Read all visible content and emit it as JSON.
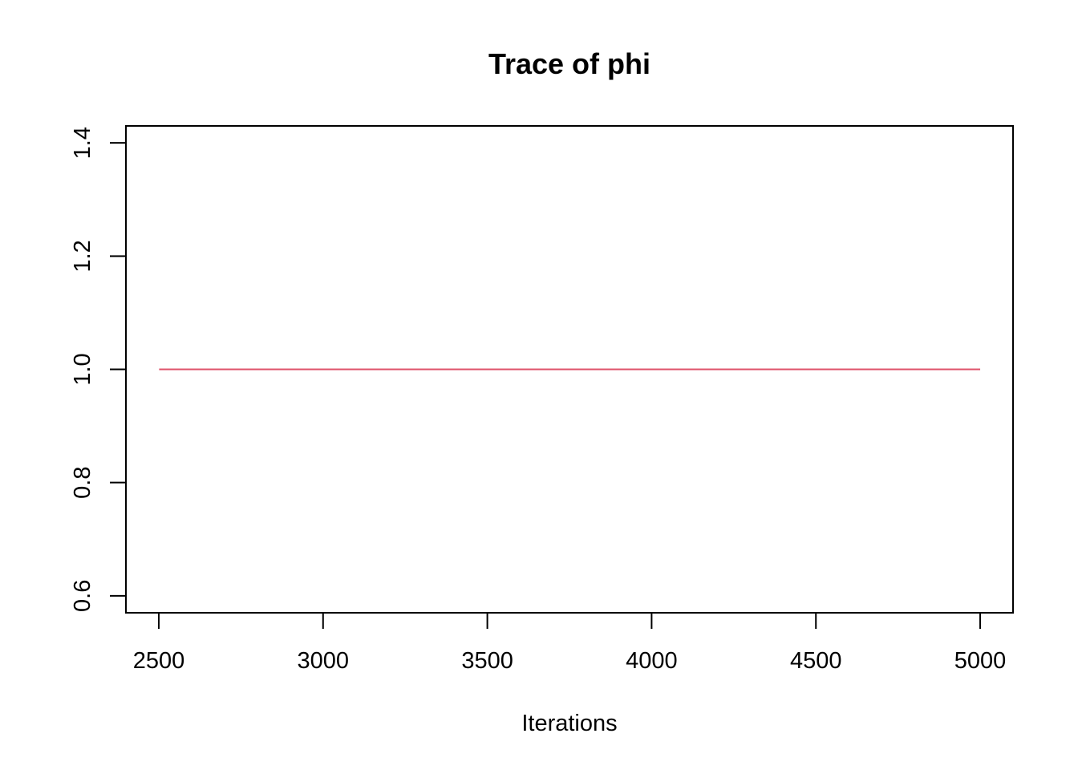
{
  "chart_data": {
    "type": "line",
    "title": "Trace of phi",
    "xlabel": "Iterations",
    "ylabel": "",
    "xlim": [
      2400,
      5100
    ],
    "ylim": [
      0.57,
      1.43
    ],
    "x_ticks": [
      2500,
      3000,
      3500,
      4000,
      4500,
      5000
    ],
    "x_tick_labels": [
      "2500",
      "3000",
      "3500",
      "4000",
      "4500",
      "5000"
    ],
    "y_ticks": [
      0.6,
      0.8,
      1.0,
      1.2,
      1.4
    ],
    "y_tick_labels": [
      "0.6",
      "0.8",
      "1.0",
      "1.2",
      "1.4"
    ],
    "grid": false,
    "legend": "none",
    "series": [
      {
        "color": "#DF536B",
        "x": [
          2501,
          5000
        ],
        "values": [
          1.0,
          1.0
        ]
      }
    ]
  }
}
